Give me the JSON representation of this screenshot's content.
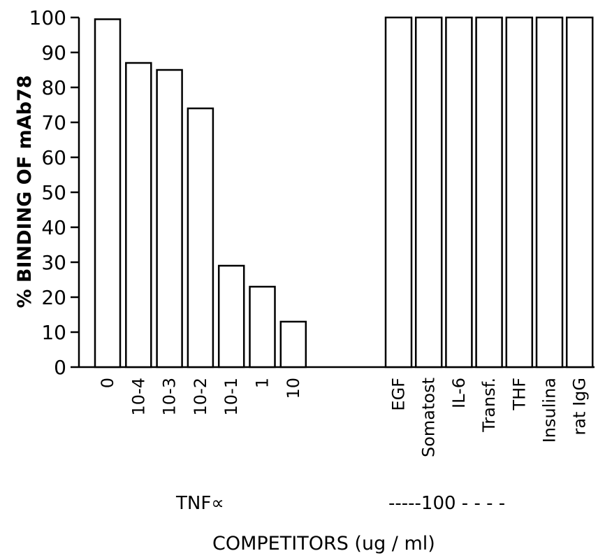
{
  "chart_data": {
    "type": "bar",
    "ylabel": "% BINDING OF mAb78",
    "xlabel": "COMPETITORS (ug / ml)",
    "ylim": [
      0,
      100
    ],
    "yticks": [
      "0",
      "10",
      "20",
      "30",
      "40",
      "50",
      "60",
      "70",
      "80",
      "90",
      "100"
    ],
    "grid": false,
    "groups": [
      {
        "label": "TNF∝",
        "categories": [
          "0",
          "10-4",
          "10-3",
          "10-2",
          "10-1",
          "1",
          "10"
        ],
        "values": [
          99.5,
          87,
          85,
          74,
          29,
          23,
          13
        ]
      },
      {
        "label": "-----100 - - - -",
        "categories": [
          "EGF",
          "Somatost",
          "IL-6",
          "Transf.",
          "THF",
          "Insulina",
          "rat IgG"
        ],
        "values": [
          100,
          100,
          100,
          100,
          100,
          100,
          100
        ]
      }
    ]
  }
}
